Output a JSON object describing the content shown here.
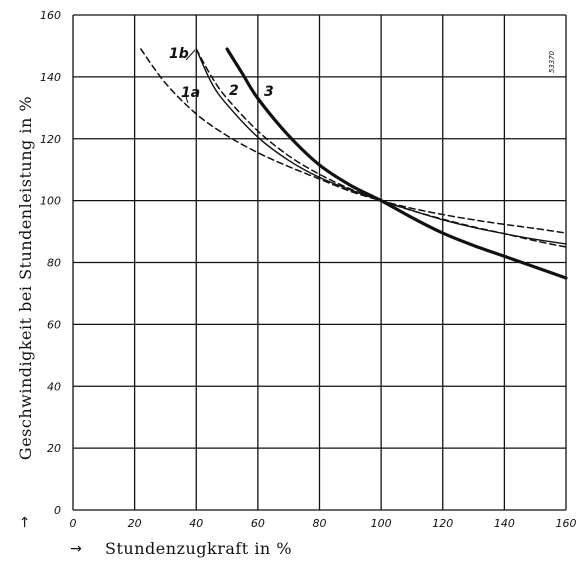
{
  "chart_data": {
    "type": "line",
    "xlabel": "Stundenzugkraft in %",
    "ylabel": "Geschwindigkeit bei Stundenleistung in %",
    "axis_arrow": "→",
    "figure_code": "53370",
    "xlim": [
      0,
      160
    ],
    "ylim": [
      0,
      160
    ],
    "xticks": [
      0,
      20,
      40,
      60,
      80,
      100,
      120,
      140,
      160
    ],
    "yticks": [
      0,
      20,
      40,
      60,
      80,
      100,
      120,
      140,
      160
    ],
    "grid": true,
    "series": [
      {
        "name": "1a",
        "style": "dashed",
        "x": [
          22,
          30,
          40,
          50,
          60,
          70,
          80,
          90,
          100,
          110,
          120,
          130,
          140,
          150,
          160
        ],
        "y": [
          149,
          138,
          128,
          121,
          115.5,
          111,
          107,
          103,
          100,
          97.5,
          95.5,
          93.8,
          92.3,
          91,
          89.5
        ]
      },
      {
        "name": "1b",
        "style": "dashed",
        "x": [
          40,
          45,
          50,
          60,
          70,
          80,
          90,
          100,
          110,
          120,
          130,
          140,
          150,
          160
        ],
        "y": [
          149,
          140,
          133,
          122.5,
          114.5,
          108.5,
          103.8,
          100,
          96.8,
          94,
          91.5,
          89.3,
          87,
          85
        ]
      },
      {
        "name": "2",
        "style": "thin",
        "x": [
          40,
          45,
          50,
          60,
          70,
          80,
          90,
          100,
          110,
          120,
          130,
          140,
          150,
          160
        ],
        "y": [
          149,
          138,
          131,
          120.5,
          113,
          107.5,
          103.5,
          100,
          96.8,
          93.8,
          91.3,
          89.3,
          87.5,
          86
        ]
      },
      {
        "name": "3",
        "style": "thick",
        "x": [
          50,
          55,
          60,
          70,
          80,
          90,
          100,
          110,
          120,
          130,
          140,
          150,
          160
        ],
        "y": [
          149,
          141,
          133,
          121,
          111.5,
          105,
          100,
          94.5,
          89.5,
          85.5,
          82,
          78.5,
          75
        ]
      }
    ]
  }
}
